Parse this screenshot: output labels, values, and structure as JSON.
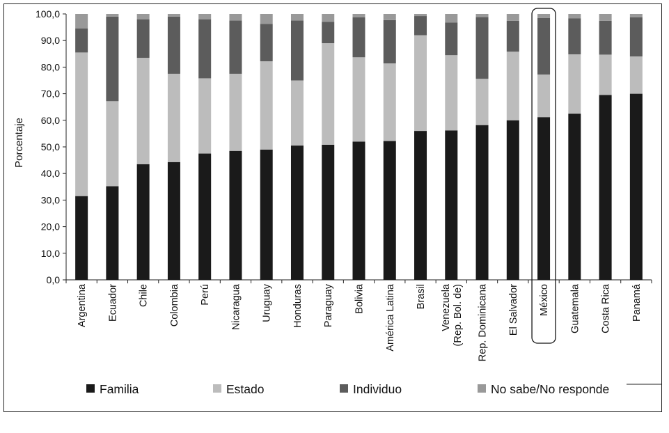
{
  "chart_data": {
    "type": "bar",
    "stacked": true,
    "ylabel": "Porcentaje",
    "ylim": [
      0,
      100
    ],
    "yticks": [
      "0,0",
      "10,0",
      "20,0",
      "30,0",
      "40,0",
      "50,0",
      "60,0",
      "70,0",
      "80,0",
      "90,0",
      "100,0"
    ],
    "categories": [
      [
        "Argentina"
      ],
      [
        "Ecuador"
      ],
      [
        "Chile"
      ],
      [
        "Colombia"
      ],
      [
        "Perú"
      ],
      [
        "Nicaragua"
      ],
      [
        "Uruguay"
      ],
      [
        "Honduras"
      ],
      [
        "Paraguay"
      ],
      [
        "Bolivia"
      ],
      [
        "América Latina"
      ],
      [
        "Brasil"
      ],
      [
        "Venezuela",
        "(Rep. Bol. de)"
      ],
      [
        "Rep. Dominicana"
      ],
      [
        "El Salvador"
      ],
      [
        "México"
      ],
      [
        "Guatemala"
      ],
      [
        "Costa Rica"
      ],
      [
        "Panamá"
      ]
    ],
    "highlight_category_index": 15,
    "series": [
      {
        "name": "Familia",
        "color": "#1a1a1a",
        "values": [
          31.5,
          35.2,
          43.5,
          44.3,
          47.5,
          48.5,
          49.0,
          50.5,
          50.8,
          52.0,
          52.2,
          56.0,
          56.2,
          58.2,
          60.0,
          61.2,
          62.5,
          69.5,
          70.0
        ]
      },
      {
        "name": "Estado",
        "color": "#bcbcbc",
        "values": [
          54.0,
          32.0,
          40.0,
          33.2,
          28.3,
          29.0,
          33.2,
          24.5,
          38.2,
          31.7,
          29.2,
          36.0,
          28.3,
          17.4,
          25.8,
          16.0,
          22.3,
          15.2,
          14.0
        ]
      },
      {
        "name": "Individuo",
        "color": "#5c5c5c",
        "values": [
          9.0,
          31.8,
          14.5,
          21.5,
          22.2,
          20.0,
          14.0,
          22.5,
          8.0,
          15.0,
          16.3,
          7.2,
          12.3,
          23.2,
          11.6,
          21.3,
          13.5,
          12.7,
          14.7
        ]
      },
      {
        "name": "No sabe/No responde",
        "color": "#999999",
        "values": [
          5.5,
          1.0,
          2.0,
          1.0,
          2.0,
          2.5,
          3.8,
          2.5,
          3.0,
          1.3,
          2.3,
          0.8,
          3.2,
          1.2,
          2.6,
          1.5,
          1.7,
          2.6,
          1.3
        ]
      }
    ],
    "grid": false,
    "legend_position": "bottom"
  }
}
